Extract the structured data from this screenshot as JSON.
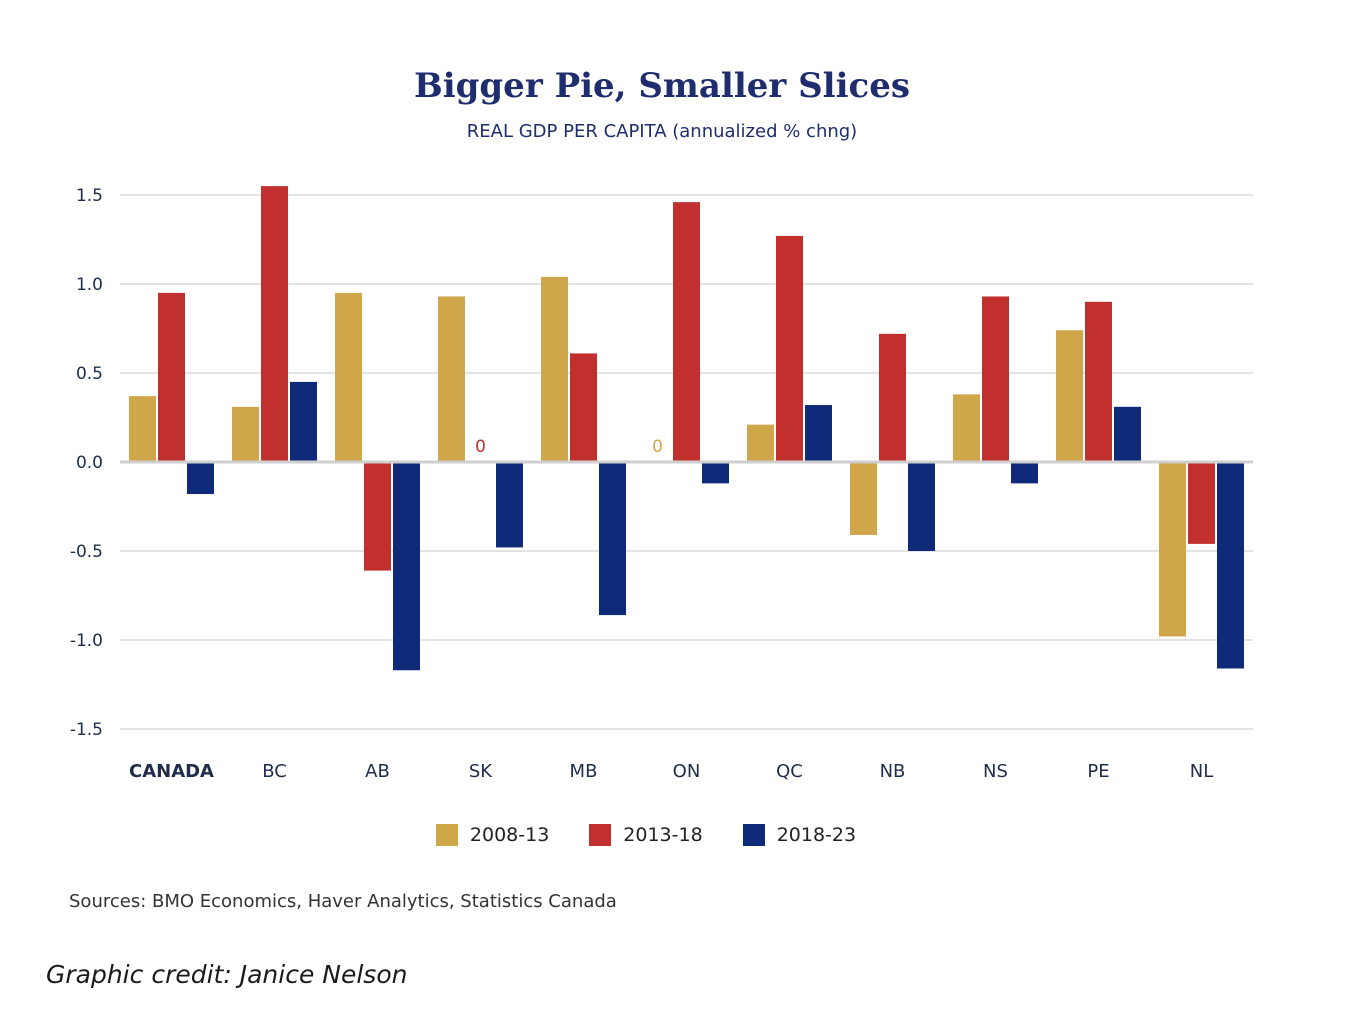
{
  "chart_data": {
    "type": "bar",
    "title": "Bigger Pie, Smaller Slices",
    "subtitle": "REAL GDP PER CAPITA (annualized % chng)",
    "xlabel": "",
    "ylabel": "",
    "ylim": [
      -1.5,
      1.5
    ],
    "yticks": [
      1.5,
      1.0,
      0.5,
      0.0,
      -0.5,
      -1.0,
      -1.5
    ],
    "ytick_labels": [
      "1.5",
      "1.0",
      "0.5",
      "0.0",
      "-0.5",
      "-1.0",
      "-1.5"
    ],
    "grid": true,
    "legend_position": "bottom-center",
    "categories": [
      "CANADA",
      "BC",
      "AB",
      "SK",
      "MB",
      "ON",
      "QC",
      "NB",
      "NS",
      "PE",
      "NL"
    ],
    "series": [
      {
        "name": "2008-13",
        "color": "#cfa64a",
        "values": [
          0.37,
          0.31,
          0.95,
          0.93,
          1.04,
          0,
          0.21,
          -0.41,
          0.38,
          0.74,
          -0.98
        ]
      },
      {
        "name": "2013-18",
        "color": "#c1302f",
        "values": [
          0.95,
          1.55,
          -0.61,
          0,
          0.61,
          1.46,
          1.27,
          0.72,
          0.93,
          0.9,
          -0.46
        ]
      },
      {
        "name": "2018-23",
        "color": "#0f2a78",
        "values": [
          -0.18,
          0.45,
          -1.17,
          -0.48,
          -0.86,
          -0.12,
          0.32,
          -0.5,
          -0.12,
          0.31,
          -1.16
        ]
      }
    ],
    "annotations": [
      {
        "category": "SK",
        "series": "2013-18",
        "text": "0"
      },
      {
        "category": "ON",
        "series": "2008-13",
        "text": "0"
      }
    ],
    "sources": "Sources: BMO Economics, Haver Analytics, Statistics Canada"
  },
  "credit": "Graphic credit: Janice Nelson"
}
